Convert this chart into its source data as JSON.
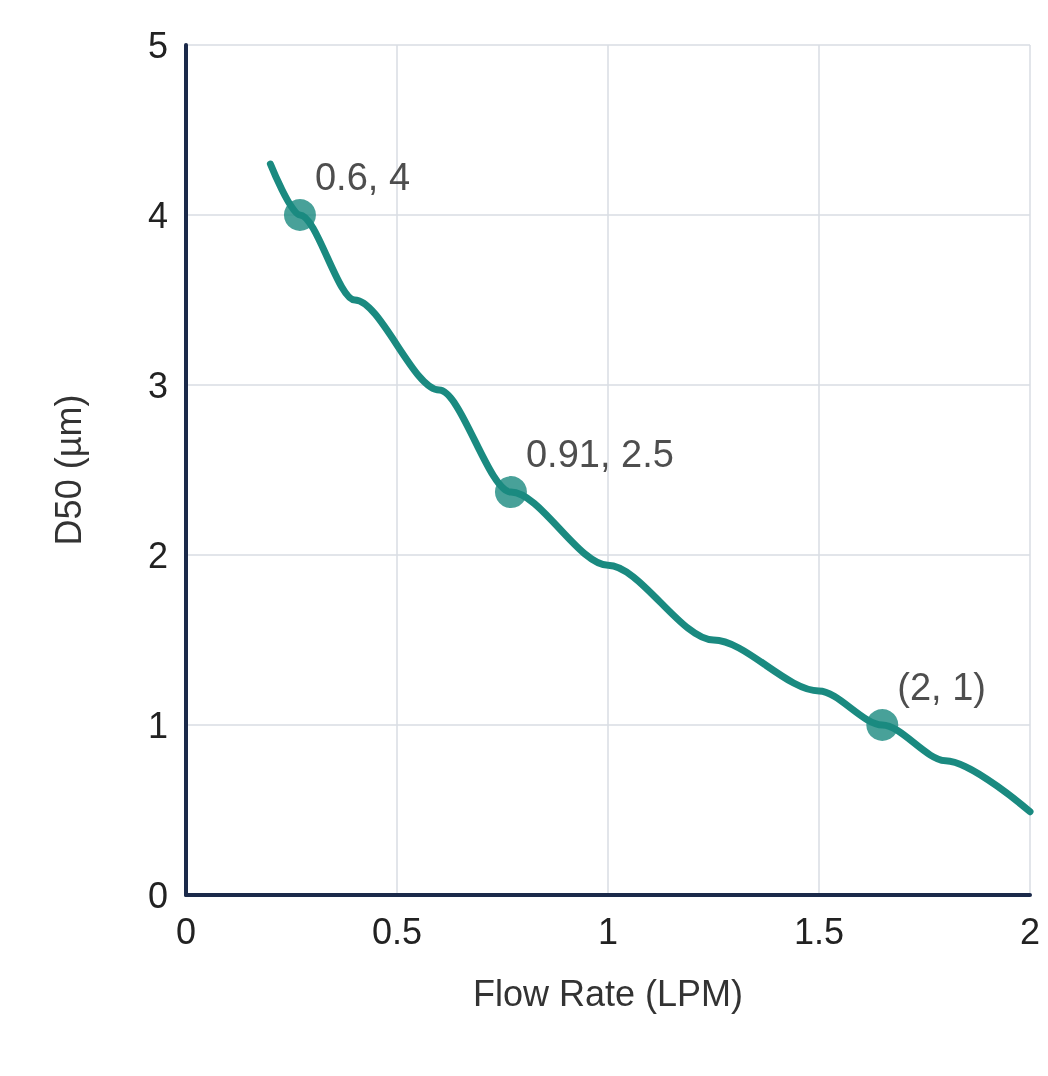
{
  "chart_data": {
    "type": "line",
    "xlabel": "Flow Rate (LPM)",
    "ylabel": "D50 (µm)",
    "xlim": [
      0,
      2
    ],
    "xticks": [
      0,
      0.5,
      1,
      1.5,
      2
    ],
    "ylim": [
      0,
      5
    ],
    "yticks": [
      0,
      1,
      2,
      3,
      4,
      5
    ],
    "grid": true,
    "series": [
      {
        "color": "#1a8a80",
        "marker": "none",
        "line_style": "solid",
        "x": [
          0.2,
          0.27,
          0.4,
          0.6,
          0.77,
          1.0,
          1.25,
          1.5,
          1.65,
          1.8,
          2.0
        ],
        "values": [
          4.3,
          4.0,
          3.5,
          2.97,
          2.37,
          1.94,
          1.5,
          1.2,
          1.0,
          0.79,
          0.49
        ]
      },
      {
        "type": "scatter",
        "color": "#1a8a80",
        "marker": "circle",
        "x": [
          0.27,
          0.77,
          1.65
        ],
        "values": [
          4.0,
          2.37,
          1.0
        ]
      }
    ],
    "annotations": [
      {
        "text": "0.6, 4",
        "x": 0.27,
        "y": 4.0
      },
      {
        "text": "0.91, 2.5",
        "x": 0.77,
        "y": 2.37
      },
      {
        "text": "(2, 1)",
        "x": 1.65,
        "y": 1.0
      }
    ]
  }
}
